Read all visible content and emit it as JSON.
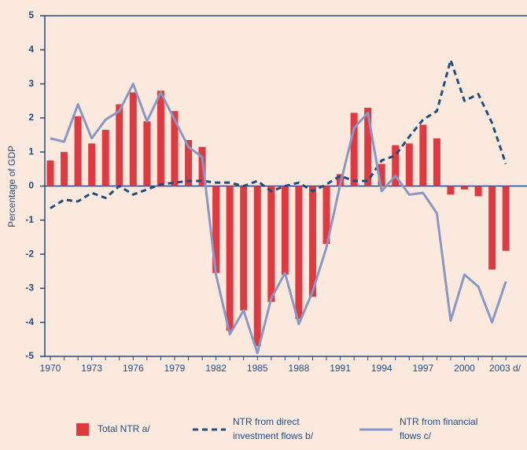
{
  "chart_data": {
    "type": "bar_line",
    "y_label": "Percentage of GDP",
    "categories": [
      "1970",
      null,
      null,
      "1973",
      null,
      null,
      "1976",
      null,
      null,
      "1979",
      null,
      null,
      "1982",
      null,
      null,
      "1985",
      null,
      null,
      "1988",
      null,
      null,
      "1991",
      null,
      null,
      "1994",
      null,
      null,
      "1997",
      null,
      null,
      "2000",
      null,
      null,
      "2003 d/"
    ],
    "series": [
      {
        "name": "Total NTR a/",
        "kind": "bar",
        "color": "#e2383f",
        "values": [
          0.75,
          1.0,
          2.05,
          1.25,
          1.65,
          2.4,
          2.75,
          1.9,
          2.8,
          2.2,
          1.35,
          1.15,
          -2.55,
          -4.25,
          -3.65,
          -4.7,
          -3.4,
          -2.6,
          -3.9,
          -3.25,
          -1.7,
          0.35,
          2.15,
          2.3,
          0.65,
          1.2,
          1.25,
          1.8,
          1.4,
          -0.25,
          -0.1,
          -0.3,
          -2.45,
          -1.9
        ]
      },
      {
        "name": "NTR from direct investment flows b/",
        "kind": "dashed-line",
        "color": "#1a4f80",
        "values": [
          -0.65,
          -0.4,
          -0.45,
          -0.2,
          -0.35,
          0.0,
          -0.25,
          -0.1,
          0.05,
          0.1,
          0.15,
          0.15,
          0.1,
          0.1,
          0.0,
          0.15,
          -0.15,
          0.0,
          0.1,
          -0.15,
          0.05,
          0.3,
          0.15,
          0.15,
          0.75,
          0.9,
          1.45,
          1.95,
          2.2,
          3.7,
          2.5,
          2.7,
          1.85,
          0.65
        ]
      },
      {
        "name": "NTR from financial flows c/",
        "kind": "line",
        "color": "#8797c6",
        "values": [
          1.4,
          1.3,
          2.4,
          1.4,
          1.95,
          2.2,
          3.0,
          1.9,
          2.75,
          1.95,
          1.15,
          0.85,
          -2.6,
          -4.35,
          -3.65,
          -4.9,
          -3.3,
          -2.55,
          -4.05,
          -3.1,
          -1.8,
          0.05,
          1.7,
          2.15,
          -0.15,
          0.3,
          -0.25,
          -0.2,
          -0.8,
          -3.95,
          -2.6,
          -2.95,
          -4.0,
          -2.8
        ]
      }
    ],
    "ylim": [
      -5,
      5
    ],
    "yticks": [
      -5,
      -4,
      -3,
      -2,
      -1,
      0,
      1,
      2,
      3,
      4,
      5
    ]
  }
}
